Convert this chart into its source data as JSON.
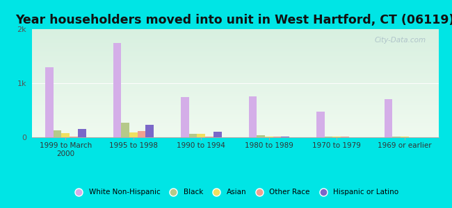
{
  "title": "Year householders moved into unit in West Hartford, CT (06119)",
  "categories": [
    "1999 to March\n2000",
    "1995 to 1998",
    "1990 to 1994",
    "1980 to 1989",
    "1970 to 1979",
    "1969 or earlier"
  ],
  "series": {
    "White Non-Hispanic": [
      1300,
      1750,
      750,
      760,
      480,
      700
    ],
    "Black": [
      130,
      270,
      60,
      40,
      10,
      10
    ],
    "Asian": [
      80,
      90,
      70,
      15,
      8,
      8
    ],
    "Other Race": [
      10,
      110,
      10,
      10,
      10,
      5
    ],
    "Hispanic or Latino": [
      160,
      230,
      100,
      10,
      5,
      5
    ]
  },
  "colors": {
    "White Non-Hispanic": "#d4aee8",
    "Black": "#b5c98a",
    "Asian": "#f0e060",
    "Other Race": "#f0a090",
    "Hispanic or Latino": "#7b68c8"
  },
  "ylim": [
    0,
    2000
  ],
  "yticks": [
    0,
    1000,
    2000
  ],
  "ytick_labels": [
    "0",
    "1k",
    "2k"
  ],
  "background_color": "#00e5e5",
  "bar_width": 0.12,
  "title_fontsize": 12.5
}
